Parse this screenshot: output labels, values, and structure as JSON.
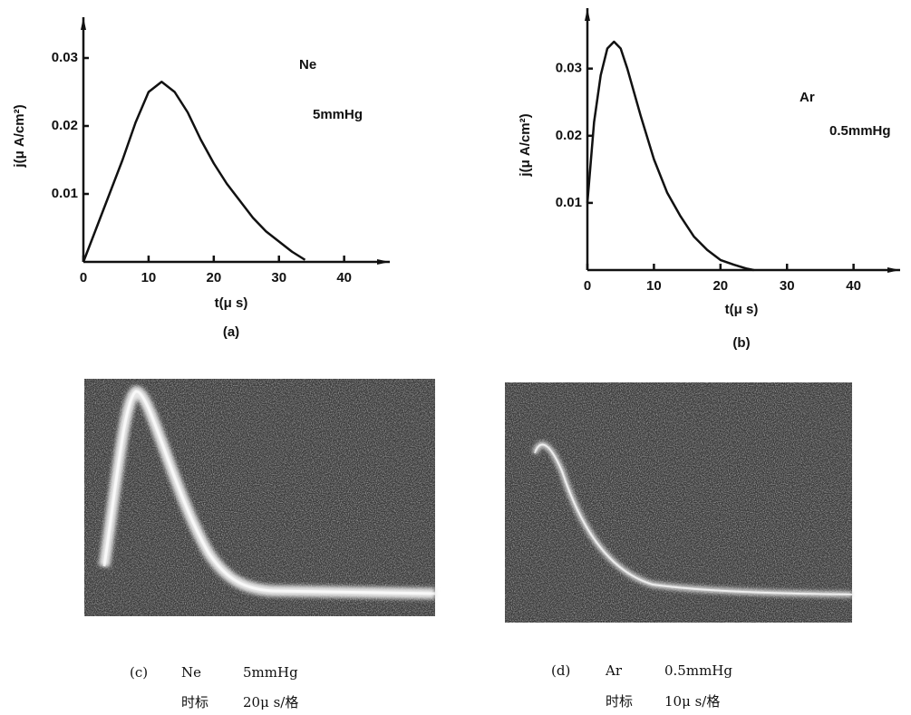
{
  "chart_data": [
    {
      "type": "line",
      "caption": "(a)",
      "xlabel": "t(μ s)",
      "ylabel": "j(μ A/cm²)",
      "annotations": [
        "Ne",
        "5mmHg"
      ],
      "x": [
        0,
        2,
        4,
        6,
        8,
        10,
        12,
        14,
        16,
        18,
        20,
        22,
        24,
        26,
        28,
        30,
        32,
        34
      ],
      "series": [
        {
          "color": "#111111",
          "values": [
            0,
            0.005,
            0.01,
            0.015,
            0.0205,
            0.025,
            0.0265,
            0.025,
            0.022,
            0.018,
            0.0145,
            0.0115,
            0.009,
            0.0065,
            0.0045,
            0.003,
            0.0015,
            0.0003
          ]
        }
      ],
      "xlim": [
        0,
        47
      ],
      "ylim": [
        0,
        0.036
      ],
      "xticks": [
        0,
        10,
        20,
        30,
        40
      ],
      "yticks": [
        0.01,
        0.02,
        0.03
      ],
      "grid": false
    },
    {
      "type": "line",
      "caption": "(b)",
      "xlabel": "t(μ s)",
      "ylabel": "j(μ A/cm²)",
      "annotations": [
        "Ar",
        "0.5mmHg"
      ],
      "x": [
        0,
        1,
        2,
        3,
        4,
        5,
        6,
        8,
        10,
        12,
        14,
        16,
        18,
        20,
        22,
        24,
        25
      ],
      "series": [
        {
          "color": "#111111",
          "values": [
            0.01,
            0.022,
            0.029,
            0.033,
            0.034,
            0.033,
            0.03,
            0.023,
            0.0165,
            0.0115,
            0.008,
            0.005,
            0.003,
            0.0015,
            0.0008,
            0.0002,
            0
          ]
        }
      ],
      "xlim": [
        0,
        47
      ],
      "ylim": [
        0,
        0.039
      ],
      "xticks": [
        0,
        10,
        20,
        30,
        40
      ],
      "yticks": [
        0.01,
        0.02,
        0.03
      ],
      "grid": false
    }
  ],
  "panels": [
    {
      "label": "(c)",
      "gas": "Ne",
      "pressure": "5mmHg",
      "time_mark": "时标",
      "time_scale": "20μ s/格"
    },
    {
      "label": "(d)",
      "gas": "Ar",
      "pressure": "0.5mmHg",
      "time_mark": "时标",
      "time_scale": "10μ s/格"
    }
  ]
}
